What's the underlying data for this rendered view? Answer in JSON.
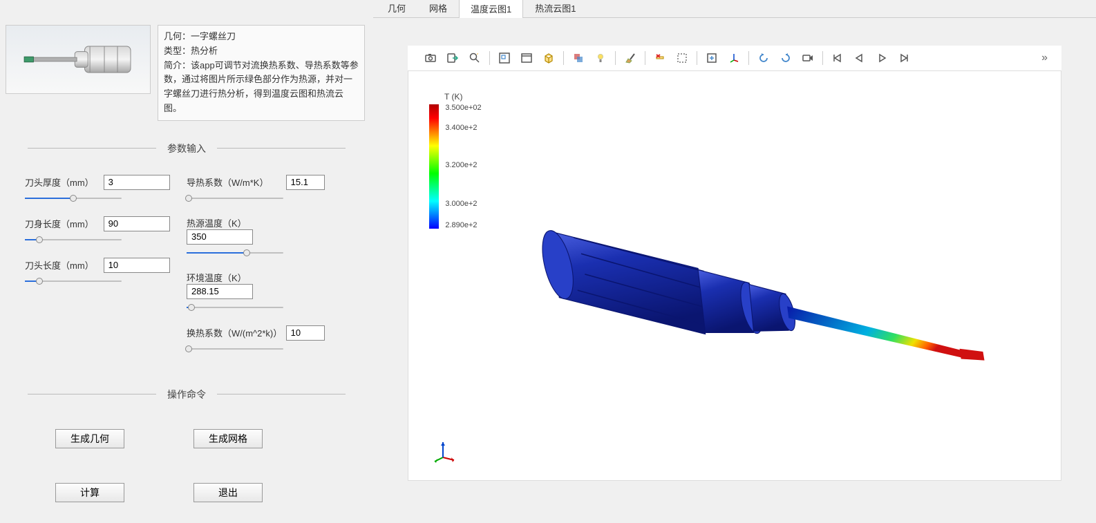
{
  "info": {
    "geometry_label": "几何：",
    "geometry_value": "一字螺丝刀",
    "type_label": "类型：",
    "type_value": "热分析",
    "desc_label": "简介：",
    "desc_value": "该app可调节对流换热系数、导热系数等参数，通过将图片所示绿色部分作为热源，并对一字螺丝刀进行热分析，得到温度云图和热流云图。"
  },
  "sections": {
    "params_title": "参数输入",
    "actions_title": "操作命令"
  },
  "params": {
    "thickness": {
      "label": "刀头厚度（mm）",
      "value": "3",
      "slider_pct": 50
    },
    "body_len": {
      "label": "刀身长度（mm）",
      "value": "90",
      "slider_pct": 15
    },
    "head_len": {
      "label": "刀头长度（mm）",
      "value": "10",
      "slider_pct": 15
    },
    "conductivity": {
      "label": "导热系数（W/m*K）",
      "value": "15.1",
      "slider_pct": 2
    },
    "heat_temp": {
      "label": "热源温度（K）",
      "value": "350",
      "slider_pct": 62
    },
    "env_temp": {
      "label": "环境温度（K）",
      "value": "288.15",
      "slider_pct": 5
    },
    "conv_coef": {
      "label": "换热系数（W/(m^2*k)）",
      "value": "10",
      "slider_pct": 2
    }
  },
  "buttons": {
    "gen_geom": "生成几何",
    "gen_mesh": "生成网格",
    "calc": "计算",
    "exit": "退出"
  },
  "tabs": {
    "geom": "几何",
    "mesh": "网格",
    "temp": "温度云图1",
    "flux": "热流云图1"
  },
  "legend": {
    "title": "T (K)",
    "ticks": [
      {
        "label": "3.500e+02",
        "pos": 0
      },
      {
        "label": "3.400e+2",
        "pos": 17
      },
      {
        "label": "3.200e+2",
        "pos": 49
      },
      {
        "label": "3.000e+2",
        "pos": 82
      },
      {
        "label": "2.890e+2",
        "pos": 100
      }
    ],
    "gradient": [
      "#b00000",
      "#ff0000",
      "#ff8000",
      "#ffff00",
      "#80ff00",
      "#00ff00",
      "#00ff80",
      "#00ffff",
      "#0080ff",
      "#0000ff"
    ]
  },
  "colors": {
    "handle": "#1a2fb0",
    "shaft_cold": "#0020b0",
    "tip_hot": "#d01010",
    "bg": "#ffffff"
  },
  "toolbar_icons": [
    "camera-icon",
    "export-icon",
    "zoom-search-icon",
    "zoom-box-icon",
    "window-icon",
    "box3d-icon",
    "transparency-icon",
    "light-icon",
    "brush-icon",
    "delete-x-icon",
    "select-dashed-icon",
    "view-all-icon",
    "axes-xyz-icon",
    "rotate-ccw-icon",
    "rotate-cw-icon",
    "video-icon",
    "skip-back-icon",
    "step-back-icon",
    "play-icon",
    "step-fwd-icon"
  ],
  "toolbar_seps": [
    2,
    5,
    7,
    8,
    10,
    12,
    15
  ]
}
